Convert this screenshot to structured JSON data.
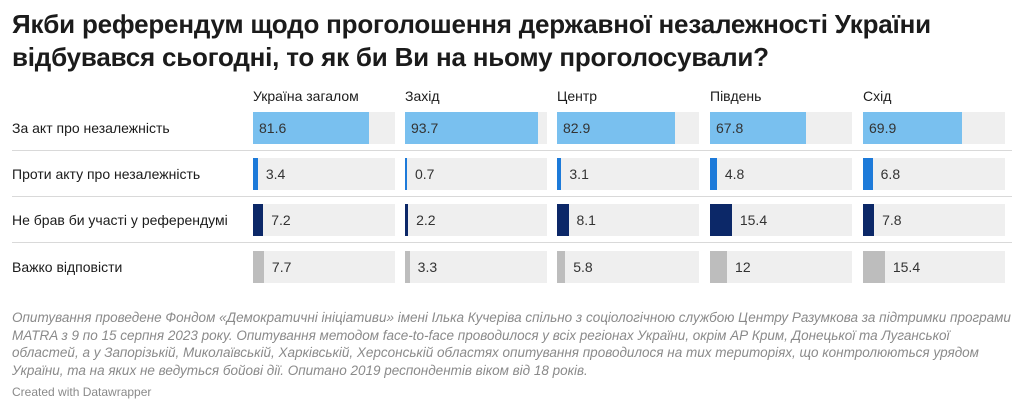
{
  "title": "Якби референдум щодо проголошення державної незалежності України відбувався сьогодні, то як би Ви на ньому проголосували?",
  "note": "Опитування проведене Фондом «Демократичні ініціативи» імені Ілька Кучеріва спільно з соціологічною службою Центру Разумкова за підтримки програми MATRA з 9 по 15 серпня 2023 року. Опитування методом face-to-face проводилося у всіх регіонах України, окрім АР Крим, Донецької та Луганської областей, а у Запорізькій, Миколаївській, Харківській, Херсонській областях опитування проводилося на тих територіях, що контролюються урядом України, та на яких не ведуться бойові дії. Опитано 2019 респондентів віком від 18 років.",
  "credit": "Created with Datawrapper",
  "chart_data": {
    "type": "bar",
    "xlim": [
      0,
      100
    ],
    "columns": [
      "Україна загалом",
      "Захід",
      "Центр",
      "Південь",
      "Схід"
    ],
    "rows": [
      {
        "label": "За акт про незалежність",
        "color": "#79c0ef",
        "values": [
          81.6,
          93.7,
          82.9,
          67.8,
          69.9
        ],
        "value_labels": [
          "81.6",
          "93.7",
          "82.9",
          "67.8",
          "69.9"
        ]
      },
      {
        "label": "Проти акту про незалежність",
        "color": "#1d7ad9",
        "values": [
          3.4,
          0.7,
          3.1,
          4.8,
          6.8
        ],
        "value_labels": [
          "3.4",
          "0.7",
          "3.1",
          "4.8",
          "6.8"
        ]
      },
      {
        "label": "Не брав би участі у референдумі",
        "color": "#0c2868",
        "values": [
          7.2,
          2.2,
          8.1,
          15.4,
          7.8
        ],
        "value_labels": [
          "7.2",
          "2.2",
          "8.1",
          "15.4",
          "7.8"
        ]
      },
      {
        "label": "Важко відповісти",
        "color": "#bdbdbd",
        "values": [
          7.7,
          3.3,
          5.8,
          12,
          15.4
        ],
        "value_labels": [
          "7.7",
          "3.3",
          "5.8",
          "12",
          "15.4"
        ]
      }
    ]
  }
}
